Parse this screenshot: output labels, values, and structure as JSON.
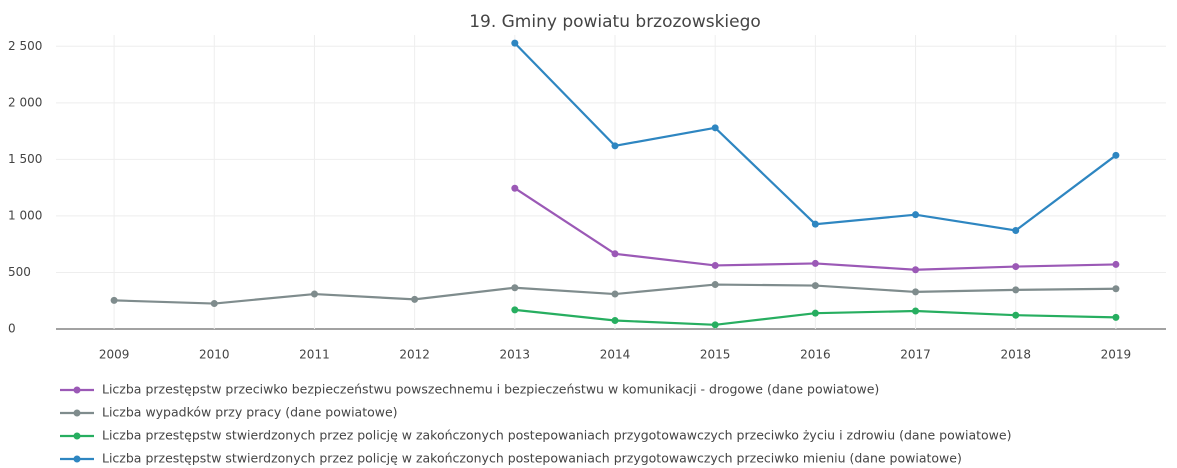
{
  "chart_data": {
    "type": "line",
    "title": "19. Gminy powiatu brzozowskiego",
    "categories": [
      "2009",
      "2010",
      "2011",
      "2012",
      "2013",
      "2014",
      "2015",
      "2016",
      "2017",
      "2018",
      "2019"
    ],
    "ylim": [
      0,
      2600
    ],
    "yticks": [
      0,
      500,
      {
        "value": 1000,
        "label": "1 000"
      },
      {
        "value": 1500,
        "label": "1 500"
      },
      {
        "value": 2000,
        "label": "2 000"
      },
      {
        "value": 2500,
        "label": "2 500"
      }
    ],
    "grid": true,
    "legend": "bottom",
    "series": [
      {
        "name": "Liczba przestępstw przeciwko bezpieczeństwu powszechnemu i bezpieczeństwu w komunikacji - drogowe (dane powiatowe)",
        "color": "#9b59b6",
        "values": [
          null,
          null,
          null,
          null,
          1245,
          665,
          562,
          580,
          524,
          552,
          571
        ]
      },
      {
        "name": "Liczba wypadków przy pracy (dane powiatowe)",
        "color": "#7f8c8d",
        "values": [
          253,
          225,
          309,
          262,
          365,
          309,
          393,
          384,
          328,
          346,
          356
        ]
      },
      {
        "name": "Liczba przestępstw stwierdzonych przez policję w zakończonych postepowaniach przygotowawczych przeciwko życiu i zdrowiu (dane powiatowe)",
        "color": "#27ae60",
        "values": [
          null,
          null,
          null,
          null,
          169,
          75,
          37,
          140,
          159,
          122,
          103
        ]
      },
      {
        "name": "Liczba przestępstw stwierdzonych przez policję w zakończonych postepowaniach przygotowawczych przeciwko mieniu (dane powiatowe)",
        "color": "#2e86c1",
        "values": [
          null,
          null,
          null,
          null,
          2528,
          1620,
          1779,
          927,
          1011,
          871,
          1536
        ]
      }
    ]
  }
}
